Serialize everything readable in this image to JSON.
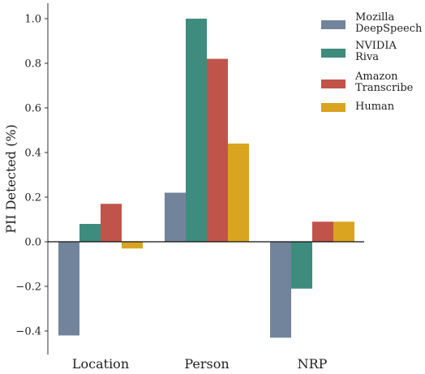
{
  "chart_data": {
    "type": "bar",
    "categories": [
      "Location",
      "Person",
      "NRP"
    ],
    "series": [
      {
        "name": "Mozilla\nDeepSpeech",
        "color": "#72849b",
        "values": [
          -0.42,
          0.22,
          -0.43
        ]
      },
      {
        "name": "NVIDIA\nRiva",
        "color": "#3d8c7e",
        "values": [
          0.08,
          1.0,
          -0.21
        ]
      },
      {
        "name": "Amazon\nTranscribe",
        "color": "#c0544b",
        "values": [
          0.17,
          0.82,
          0.09
        ]
      },
      {
        "name": "Human",
        "color": "#d9a41f",
        "values": [
          -0.03,
          0.44,
          0.09
        ]
      }
    ],
    "ylabel": "PII Detected (%)",
    "xlabel": "",
    "ylim": [
      -0.5,
      1.07
    ],
    "yticks": [
      -0.4,
      -0.2,
      0.0,
      0.2,
      0.4,
      0.6,
      0.8,
      1.0
    ],
    "ytick_labels": [
      "−0.4",
      "−0.2",
      "0.0",
      "0.2",
      "0.4",
      "0.6",
      "0.8",
      "1.0"
    ],
    "zero_line": true,
    "grid": false,
    "legend_position": "top-right"
  }
}
